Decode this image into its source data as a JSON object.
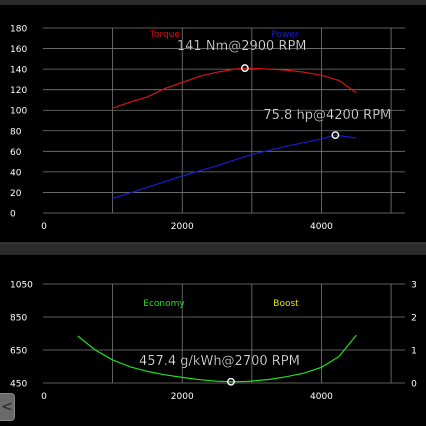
{
  "chart_data": [
    {
      "type": "line",
      "title": "",
      "xlabel": "",
      "ylabel": "",
      "xlim": [
        0,
        5200
      ],
      "ylim": [
        0,
        180
      ],
      "yticks": [
        0,
        20,
        40,
        60,
        80,
        100,
        120,
        140,
        160,
        180
      ],
      "xticks": [
        0,
        2000,
        4000
      ],
      "grid": true,
      "legend": "top-center",
      "series": [
        {
          "name": "Torque",
          "color": "#d21414",
          "x": [
            1000,
            1250,
            1500,
            1750,
            2000,
            2250,
            2500,
            2750,
            2900,
            3250,
            3500,
            3750,
            4000,
            4250,
            4500
          ],
          "y": [
            102,
            108,
            113,
            121,
            127,
            133,
            137,
            140,
            141,
            140,
            139,
            137,
            134,
            129,
            117
          ]
        },
        {
          "name": "Power",
          "color": "#1a1acc",
          "x": [
            1000,
            1500,
            2000,
            2500,
            3000,
            3500,
            4000,
            4200,
            4500
          ],
          "y": [
            14,
            25,
            36,
            46,
            57,
            65,
            72,
            75.8,
            73
          ]
        }
      ],
      "annotations": [
        {
          "text": "141 Nm@2900 RPM",
          "x": 2900,
          "y": 141
        },
        {
          "text": "75.8 hp@4200 RPM",
          "x": 4200,
          "y": 75.8
        }
      ]
    },
    {
      "type": "line",
      "title": "",
      "xlabel": "",
      "ylabel": "",
      "xlim": [
        0,
        5200
      ],
      "ylim": [
        450,
        1050
      ],
      "yticks": [
        450,
        650,
        850,
        1050
      ],
      "y2ticks": [
        0,
        1,
        2,
        3
      ],
      "xticks": [
        0,
        2000,
        4000
      ],
      "grid": true,
      "legend": "top-center",
      "series": [
        {
          "name": "Economy",
          "color": "#22dd22",
          "x": [
            500,
            750,
            1000,
            1250,
            1500,
            1750,
            2000,
            2250,
            2500,
            2700,
            2950,
            3250,
            3500,
            3750,
            4000,
            4250,
            4500
          ],
          "y": [
            735,
            650,
            590,
            548,
            520,
            500,
            484,
            470,
            461,
            457.4,
            460,
            472,
            488,
            510,
            545,
            610,
            740
          ]
        },
        {
          "name": "Boost",
          "color": "#e6e610",
          "x": [],
          "y": []
        }
      ],
      "annotations": [
        {
          "text": "457.4 g/kWh@2700 RPM",
          "x": 2700,
          "y": 457.4
        }
      ]
    }
  ],
  "ui": {
    "back_symbol": "<"
  }
}
